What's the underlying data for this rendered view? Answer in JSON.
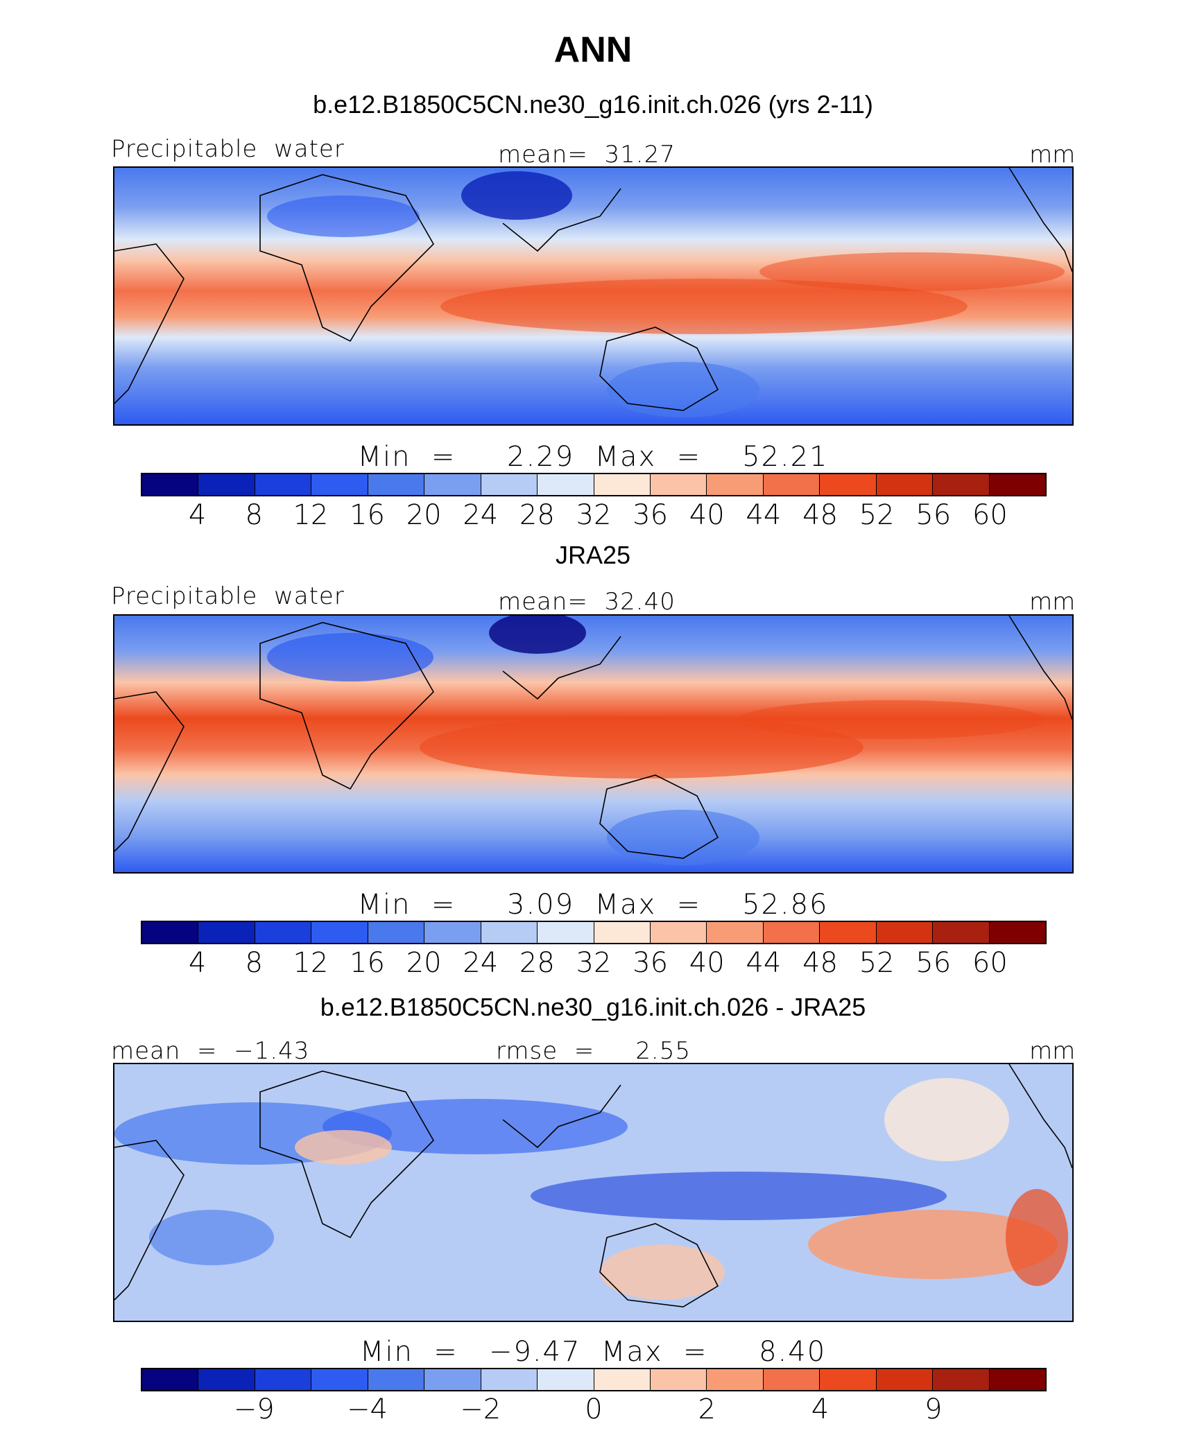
{
  "title": "ANN",
  "colors": [
    "#05037f",
    "#0a22b8",
    "#1a3fdc",
    "#2e5cf0",
    "#4a79ee",
    "#7a9ef0",
    "#b6ccf5",
    "#dde9f9",
    "#fde8d8",
    "#fbc4a8",
    "#f89c76",
    "#f2704a",
    "#ec4a1e",
    "#d43312",
    "#a82010",
    "#7f0000"
  ],
  "panels": [
    {
      "title": "b.e12.B1850C5CN.ne30_g16.init.ch.026 (yrs 2-11)",
      "left_label": "Precipitable  water",
      "center_label": "mean=  31.27",
      "right_label": "mm",
      "minmax": "Min  =     2.29  Max  =    52.21",
      "ticks": [
        "4",
        "8",
        "12",
        "16",
        "20",
        "24",
        "28",
        "32",
        "36",
        "40",
        "44",
        "48",
        "52",
        "56",
        "60"
      ]
    },
    {
      "title": "JRA25",
      "left_label": "Precipitable  water",
      "center_label": "mean=  32.40",
      "right_label": "mm",
      "minmax": "Min  =     3.09  Max  =    52.86",
      "ticks": [
        "4",
        "8",
        "12",
        "16",
        "20",
        "24",
        "28",
        "32",
        "36",
        "40",
        "44",
        "48",
        "52",
        "56",
        "60"
      ]
    },
    {
      "title": "b.e12.B1850C5CN.ne30_g16.init.ch.026 - JRA25",
      "left_label": "mean  =  −1.43",
      "center_label": "rmse  =     2.55",
      "right_label": "mm",
      "minmax": "Min  =   −9.47  Max  =     8.40",
      "ticks": [
        "−9",
        "",
        "−4",
        "",
        "−2",
        "",
        "0",
        "",
        "2",
        "",
        "4",
        "",
        "9"
      ]
    }
  ]
}
